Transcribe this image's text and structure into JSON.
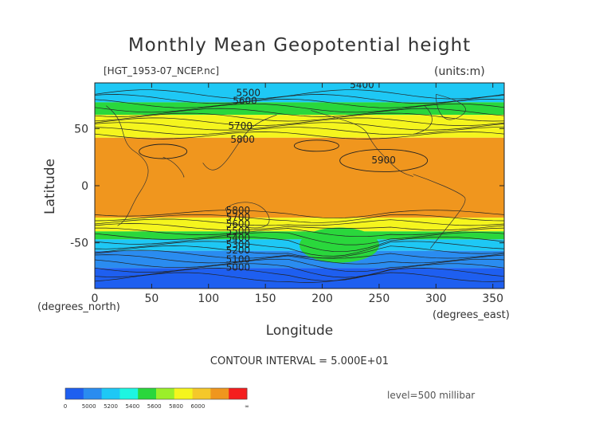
{
  "chart_data": {
    "type": "contour",
    "title": "Monthly Mean Geopotential height",
    "subtitle": "[HGT_1953-07_NCEP.nc]",
    "units": "(units:m)",
    "xlabel": "Longitude",
    "xlabel_unit": "(degrees_east)",
    "ylabel": "Latitude",
    "ylabel_unit": "(degrees_north)",
    "xlim": [
      0,
      360
    ],
    "ylim": [
      -90,
      90
    ],
    "x_ticks": [
      0,
      50,
      100,
      150,
      200,
      250,
      300,
      350
    ],
    "y_ticks": [
      -50,
      0,
      50
    ],
    "contour_interval": "CONTOUR INTERVAL = 5.000E+01",
    "level": "level=500 millibar",
    "zonal_bands": [
      {
        "lat_from": 90,
        "lat_to": 73,
        "level": 5400
      },
      {
        "lat_from": 73,
        "lat_to": 62,
        "level": 5500
      },
      {
        "lat_from": 62,
        "lat_to": 42,
        "level": 5700
      },
      {
        "lat_from": 42,
        "lat_to": -28,
        "level": 5800
      },
      {
        "lat_from": -28,
        "lat_to": -40,
        "level": 5700
      },
      {
        "lat_from": -40,
        "lat_to": -47,
        "level": 5500
      },
      {
        "lat_from": -47,
        "lat_to": -57,
        "level": 5400
      },
      {
        "lat_from": -57,
        "lat_to": -72,
        "level": 5200
      },
      {
        "lat_from": -72,
        "lat_to": -90,
        "level": 5000
      }
    ],
    "contour_labels": [
      {
        "text": "5400",
        "lon": 235,
        "lat": 88
      },
      {
        "text": "5500",
        "lon": 135,
        "lat": 81
      },
      {
        "text": "5600",
        "lon": 132,
        "lat": 74
      },
      {
        "text": "5700",
        "lon": 128,
        "lat": 52
      },
      {
        "text": "5800",
        "lon": 130,
        "lat": 40
      },
      {
        "text": "5900",
        "lon": 254,
        "lat": 22
      },
      {
        "text": "5800",
        "lon": 126,
        "lat": -22
      },
      {
        "text": "5700",
        "lon": 126,
        "lat": -28
      },
      {
        "text": "5600",
        "lon": 126,
        "lat": -34
      },
      {
        "text": "5500",
        "lon": 126,
        "lat": -40
      },
      {
        "text": "5400",
        "lon": 126,
        "lat": -46
      },
      {
        "text": "5300",
        "lon": 126,
        "lat": -52
      },
      {
        "text": "5200",
        "lon": 126,
        "lat": -57
      },
      {
        "text": "5100",
        "lon": 126,
        "lat": -65
      },
      {
        "text": "5000",
        "lon": 126,
        "lat": -72
      }
    ],
    "colorbar": {
      "labels": [
        "0",
        "5000",
        "5200",
        "5400",
        "5600",
        "5800",
        "6000",
        "∞"
      ],
      "colors": [
        "#1e5ff0",
        "#2a8cf0",
        "#1ec8f5",
        "#1ef5e1",
        "#2ad73c",
        "#9bef2a",
        "#f5f51e",
        "#f5c82a",
        "#f0961e",
        "#f51e1e"
      ]
    },
    "level_colors": {
      "5000": "#1e5ff0",
      "5200": "#2a8cf0",
      "5400": "#1ec8f5",
      "5500": "#2ad73c",
      "5700": "#f5f51e",
      "5800": "#f0961e"
    }
  }
}
